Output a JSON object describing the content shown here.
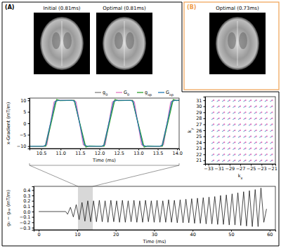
{
  "panel_labels": [
    "(A)",
    "(B)"
  ],
  "image_titles": [
    "Initial (0.81ms)",
    "Optimal (0.81ms)",
    "Optimal (0.73ms)"
  ],
  "chart_data": [
    {
      "type": "line",
      "xlabel": "Time (ms)",
      "ylabel": "x-Gradient (mT/m)",
      "xlim": [
        10.2,
        14.05
      ],
      "ylim": [
        -11,
        11
      ],
      "xticks": [
        10.5,
        {
          "value": 11,
          "label": "11.0"
        },
        11.5,
        {
          "value": 12,
          "label": "12.0"
        },
        12.5,
        {
          "value": 13,
          "label": "13.0"
        },
        13.5,
        {
          "value": 14,
          "label": "14.0"
        }
      ],
      "yticks": [
        {
          "value": -10,
          "label": "−10"
        },
        {
          "value": -5,
          "label": "−5"
        },
        0,
        5,
        10
      ],
      "legend": "top right",
      "series": [
        {
          "name": "g0",
          "color": "#7f7f7f",
          "x": [
            10.2,
            10.6,
            10.88,
            11.35,
            11.63,
            12.1,
            12.38,
            12.85,
            13.13,
            13.6,
            13.88,
            14.05
          ],
          "values": [
            -10,
            -10,
            10,
            10,
            -10,
            -10,
            10,
            10,
            -10,
            -10,
            10,
            10
          ]
        },
        {
          "name": "G0",
          "color": "#e377c2",
          "x": [
            10.2,
            10.6,
            10.65,
            10.83,
            10.9,
            11.35,
            11.4,
            11.58,
            11.65,
            12.1,
            12.15,
            12.33,
            12.4,
            12.85,
            12.9,
            13.08,
            13.15,
            13.6,
            13.65,
            13.83,
            13.9,
            14.05
          ],
          "values": [
            -10,
            -10,
            -9.3,
            9.3,
            10,
            10,
            9.3,
            -9.3,
            -10,
            -10,
            -9.3,
            9.3,
            10,
            10,
            9.3,
            -9.3,
            -10,
            -10,
            -9.3,
            9.3,
            10,
            10
          ]
        },
        {
          "name": "gop",
          "color": "#2ca02c",
          "x": [
            10.2,
            10.62,
            10.9,
            10.98,
            11.35,
            11.65,
            11.73,
            12.12,
            12.4,
            12.48,
            12.85,
            13.15,
            13.23,
            13.62,
            13.9,
            13.98,
            14.05
          ],
          "values": [
            -10,
            -10,
            10.4,
            9.9,
            10,
            -10.4,
            -9.9,
            -10,
            10.4,
            9.9,
            10,
            -10.4,
            -9.9,
            -10,
            10.4,
            9.9,
            10
          ]
        },
        {
          "name": "Gop",
          "color": "#1f77b4",
          "x": [
            10.2,
            10.55,
            10.62,
            10.86,
            10.95,
            11.3,
            11.37,
            11.61,
            11.7,
            12.05,
            12.12,
            12.36,
            12.45,
            12.8,
            12.87,
            13.11,
            13.2,
            13.55,
            13.62,
            13.86,
            13.95,
            14.05
          ],
          "values": [
            -10,
            -10,
            -9.5,
            9.5,
            10,
            10,
            9.5,
            -9.5,
            -10,
            -10,
            -9.5,
            9.5,
            10,
            10,
            9.5,
            -9.5,
            -10,
            -10,
            -9.5,
            9.5,
            10,
            10
          ]
        }
      ]
    },
    {
      "type": "scatter",
      "xlabel": "kx",
      "ylabel": "ky",
      "xlim": [
        -33.6,
        -20.4
      ],
      "ylim": [
        20.4,
        31.6
      ],
      "xticks": [
        {
          "value": -33,
          "label": "−33"
        },
        {
          "value": -31,
          "label": "−31"
        },
        {
          "value": -29,
          "label": "−29"
        },
        {
          "value": -27,
          "label": "−27"
        },
        {
          "value": -25,
          "label": "−25"
        },
        {
          "value": -23,
          "label": "−23"
        },
        {
          "value": -21,
          "label": "−21"
        }
      ],
      "yticks": [
        21,
        22,
        23,
        24,
        25,
        26,
        27,
        28,
        29,
        30,
        31
      ],
      "series": [
        {
          "color": "#e377c2",
          "marker": "circle",
          "x": [
            -32,
            -31,
            -30,
            -29,
            -28,
            -27,
            -26,
            -25,
            -24,
            -23,
            -22,
            -21,
            -32,
            -31,
            -30,
            -29,
            -28,
            -27,
            -26,
            -25,
            -24,
            -23,
            -22,
            -21,
            -32,
            -31,
            -30,
            -29,
            -28,
            -27,
            -26,
            -25,
            -24,
            -23,
            -22,
            -21,
            -32,
            -31,
            -30,
            -29,
            -28,
            -27,
            -26,
            -25,
            -24,
            -23,
            -22,
            -21,
            -32,
            -31,
            -30,
            -29,
            -28,
            -27,
            -26,
            -25,
            -24,
            -23,
            -22,
            -21,
            -32,
            -31,
            -30,
            -29,
            -28,
            -27,
            -26,
            -25,
            -24,
            -23,
            -22,
            -21,
            -32,
            -31,
            -30,
            -29,
            -28,
            -27,
            -26,
            -25,
            -24,
            -23,
            -22,
            -21,
            -32,
            -31,
            -30,
            -29,
            -28,
            -27,
            -26,
            -25,
            -24,
            -23,
            -22,
            -21,
            -32,
            -31,
            -30,
            -29,
            -28,
            -27,
            -26,
            -25,
            -24,
            -23,
            -22,
            -21,
            -32,
            -31,
            -30,
            -29,
            -28,
            -27,
            -26,
            -25,
            -24,
            -23,
            -22,
            -21,
            -32,
            -31,
            -30,
            -29,
            -28,
            -27,
            -26,
            -25,
            -24,
            -23,
            -22,
            -21
          ],
          "values": [
            31,
            31,
            31,
            31,
            31,
            31,
            31,
            31,
            31,
            31,
            31,
            31,
            30,
            30,
            30,
            30,
            30,
            30,
            30,
            30,
            30,
            30,
            30,
            30,
            29,
            29,
            29,
            29,
            29,
            29,
            29,
            29,
            29,
            29,
            29,
            29,
            28,
            28,
            28,
            28,
            28,
            28,
            28,
            28,
            28,
            28,
            28,
            28,
            27,
            27,
            27,
            27,
            27,
            27,
            27,
            27,
            27,
            27,
            27,
            27,
            26,
            26,
            26,
            26,
            26,
            26,
            26,
            26,
            26,
            26,
            26,
            26,
            25,
            25,
            25,
            25,
            25,
            25,
            25,
            25,
            25,
            25,
            25,
            25,
            24,
            24,
            24,
            24,
            24,
            24,
            24,
            24,
            24,
            24,
            24,
            24,
            23,
            23,
            23,
            23,
            23,
            23,
            23,
            23,
            23,
            23,
            23,
            23,
            22,
            22,
            22,
            22,
            22,
            22,
            22,
            22,
            22,
            22,
            22,
            22,
            21,
            21,
            21,
            21,
            21,
            21,
            21,
            21,
            21,
            21,
            21,
            21
          ]
        },
        {
          "color": "#1f77b4",
          "marker": "segment",
          "x": [
            -32.4,
            -31.4,
            -30.4,
            -29.4,
            -28.4,
            -27.4,
            -26.4,
            -25.4,
            -24.4,
            -23.4,
            -22.4,
            -21.4,
            -32.4,
            -31.4,
            -30.4,
            -29.4,
            -28.4,
            -27.4,
            -26.4,
            -25.4,
            -24.4,
            -23.4,
            -22.4,
            -21.4,
            -32.4,
            -31.4,
            -30.4,
            -29.4,
            -28.4,
            -27.4,
            -26.4,
            -25.4,
            -24.4,
            -23.4,
            -22.4,
            -21.4,
            -32.4,
            -31.4,
            -30.4,
            -29.4,
            -28.4,
            -27.4,
            -26.4,
            -25.4,
            -24.4,
            -23.4,
            -22.4,
            -21.4,
            -32.4,
            -31.4,
            -30.4,
            -29.4,
            -28.4,
            -27.4,
            -26.4,
            -25.4,
            -24.4,
            -23.4,
            -22.4,
            -21.4,
            -32.4,
            -31.4,
            -30.4,
            -29.4,
            -28.4,
            -27.4,
            -26.4,
            -25.4,
            -24.4,
            -23.4,
            -22.4,
            -21.4,
            -32.4,
            -31.4,
            -30.4,
            -29.4,
            -28.4,
            -27.4,
            -26.4,
            -25.4,
            -24.4,
            -23.4,
            -22.4,
            -21.4,
            -32.4,
            -31.4,
            -30.4,
            -29.4,
            -28.4,
            -27.4,
            -26.4,
            -25.4,
            -24.4,
            -23.4,
            -22.4,
            -21.4,
            -32.4,
            -31.4,
            -30.4,
            -29.4,
            -28.4,
            -27.4,
            -26.4,
            -25.4,
            -24.4,
            -23.4,
            -22.4,
            -21.4,
            -32.4,
            -31.4,
            -30.4,
            -29.4,
            -28.4,
            -27.4,
            -26.4,
            -25.4,
            -24.4,
            -23.4,
            -22.4,
            -21.4,
            -32.4,
            -31.4,
            -30.4,
            -29.4,
            -28.4,
            -27.4,
            -26.4,
            -25.4,
            -24.4,
            -23.4,
            -22.4,
            -21.4
          ],
          "values": [
            30.8,
            30.8,
            30.8,
            30.8,
            30.8,
            30.8,
            30.8,
            30.8,
            30.8,
            30.8,
            30.8,
            30.8,
            29.8,
            29.8,
            29.8,
            29.8,
            29.8,
            29.8,
            29.8,
            29.8,
            29.8,
            29.8,
            29.8,
            29.8,
            28.8,
            28.8,
            28.8,
            28.8,
            28.8,
            28.8,
            28.8,
            28.8,
            28.8,
            28.8,
            28.8,
            28.8,
            27.8,
            27.8,
            27.8,
            27.8,
            27.8,
            27.8,
            27.8,
            27.8,
            27.8,
            27.8,
            27.8,
            27.8,
            26.8,
            26.8,
            26.8,
            26.8,
            26.8,
            26.8,
            26.8,
            26.8,
            26.8,
            26.8,
            26.8,
            26.8,
            25.8,
            25.8,
            25.8,
            25.8,
            25.8,
            25.8,
            25.8,
            25.8,
            25.8,
            25.8,
            25.8,
            25.8,
            24.8,
            24.8,
            24.8,
            24.8,
            24.8,
            24.8,
            24.8,
            24.8,
            24.8,
            24.8,
            24.8,
            24.8,
            23.8,
            23.8,
            23.8,
            23.8,
            23.8,
            23.8,
            23.8,
            23.8,
            23.8,
            23.8,
            23.8,
            23.8,
            22.8,
            22.8,
            22.8,
            22.8,
            22.8,
            22.8,
            22.8,
            22.8,
            22.8,
            22.8,
            22.8,
            22.8,
            21.8,
            21.8,
            21.8,
            21.8,
            21.8,
            21.8,
            21.8,
            21.8,
            21.8,
            21.8,
            21.8,
            21.8,
            20.8,
            20.8,
            20.8,
            20.8,
            20.8,
            20.8,
            20.8,
            20.8,
            20.8,
            20.8,
            20.8,
            20.8
          ]
        }
      ]
    },
    {
      "type": "line",
      "xlabel": "Time (ms)",
      "ylabel": "g₀ − gₒₚ (mT/m)",
      "xlim": [
        -1.3,
        61.5
      ],
      "ylim": [
        -0.34,
        0.47
      ],
      "xticks": [
        0,
        10,
        20,
        30,
        40,
        50,
        60
      ],
      "yticks": [
        {
          "value": -0.3,
          "label": "−0.3"
        },
        {
          "value": -0.2,
          "label": "−0.2"
        },
        {
          "value": -0.1,
          "label": "−0.1"
        },
        {
          "value": 0,
          "label": "0.0"
        },
        0.1,
        0.2,
        0.3,
        0.4
      ],
      "series": [
        {
          "color": "#000000",
          "x": [
            0,
            7.0,
            7.5,
            8.25,
            9.0,
            9.75,
            10.5,
            11.25,
            12.0,
            12.75,
            13.5,
            14.25,
            15.0,
            15.75,
            16.5,
            17.25,
            18.0,
            18.75,
            19.5,
            20.25,
            21.0,
            21.75,
            22.5,
            23.25,
            24.0,
            24.75,
            25.5,
            26.25,
            27.0,
            27.75,
            28.5,
            29.25,
            30.0,
            30.75,
            31.5,
            32.25,
            33.0,
            33.75,
            34.5,
            35.25,
            36.0,
            36.75,
            37.5,
            38.25,
            39.0,
            39.75,
            40.5,
            41.25,
            42.0,
            42.75,
            43.5,
            44.25,
            45.0,
            45.75,
            46.5,
            47.25,
            48.0,
            48.75,
            49.5,
            50.25,
            51.0,
            51.75,
            52.5,
            53.25,
            54.0,
            54.75,
            55.5,
            56.25,
            57.0,
            57.75,
            58.5,
            59.2
          ],
          "values": [
            0,
            0,
            -0.05,
            0.08,
            -0.1,
            0.13,
            -0.15,
            0.17,
            -0.18,
            0.2,
            -0.19,
            0.2,
            -0.19,
            0.21,
            -0.19,
            0.2,
            -0.2,
            0.21,
            -0.19,
            0.2,
            -0.2,
            0.21,
            -0.2,
            0.2,
            -0.19,
            0.21,
            -0.2,
            0.2,
            -0.2,
            0.21,
            -0.19,
            0.2,
            -0.2,
            0.21,
            -0.2,
            0.2,
            -0.2,
            0.22,
            -0.2,
            0.21,
            -0.21,
            0.22,
            -0.21,
            0.23,
            -0.21,
            0.24,
            -0.22,
            0.25,
            -0.22,
            0.26,
            -0.23,
            0.27,
            -0.23,
            0.28,
            -0.24,
            0.3,
            -0.24,
            0.31,
            -0.25,
            0.33,
            -0.25,
            0.35,
            -0.26,
            0.37,
            -0.27,
            0.39,
            -0.28,
            0.41,
            -0.28,
            0.44,
            -0.2,
            0.05
          ]
        }
      ]
    }
  ]
}
